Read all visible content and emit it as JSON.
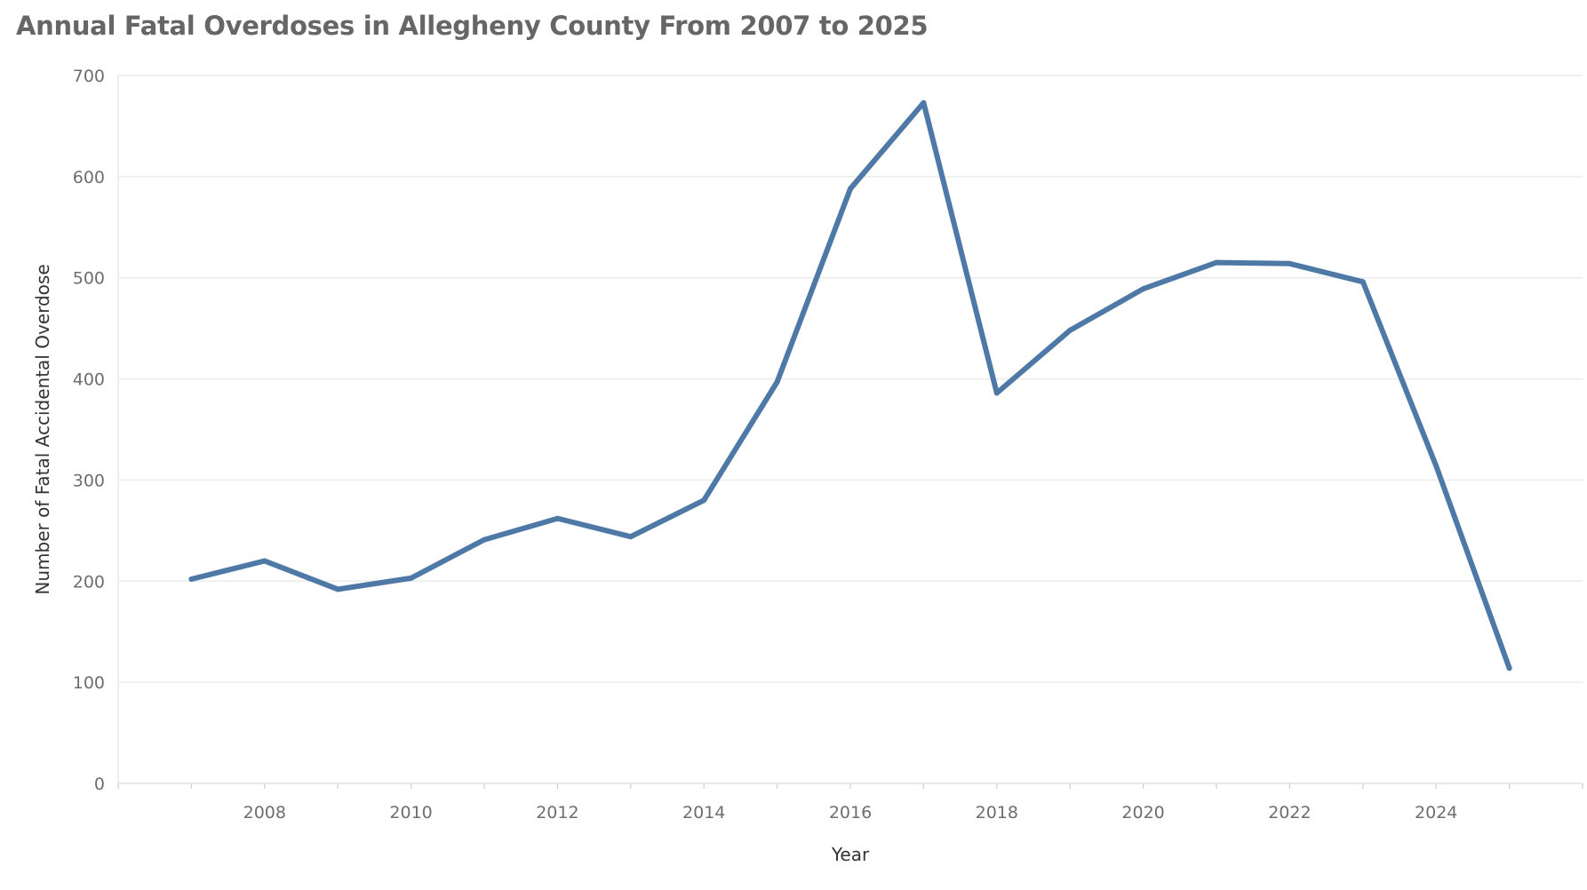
{
  "chart_data": {
    "type": "line",
    "title": "Annual Fatal Overdoses in Allegheny County From 2007 to 2025",
    "xlabel": "Year",
    "ylabel": "Number of Fatal Accidental Overdose",
    "xlim": [
      2006,
      2026
    ],
    "ylim": [
      0,
      700
    ],
    "x_ticks": [
      "2008",
      "2010",
      "2012",
      "2014",
      "2016",
      "2018",
      "2020",
      "2022",
      "2024"
    ],
    "y_ticks": [
      "0",
      "100",
      "200",
      "300",
      "400",
      "500",
      "600",
      "700"
    ],
    "grid": true,
    "legend": "none",
    "line_color": "#4e79a7",
    "series": [
      {
        "x": [
          2007,
          2008,
          2009,
          2010,
          2011,
          2012,
          2013,
          2014,
          2015,
          2016,
          2017,
          2018,
          2019,
          2020,
          2021,
          2022,
          2023,
          2024,
          2025
        ],
        "values": [
          202,
          220,
          192,
          203,
          241,
          262,
          244,
          280,
          397,
          588,
          673,
          386,
          448,
          489,
          515,
          514,
          496,
          314,
          114
        ]
      }
    ]
  }
}
